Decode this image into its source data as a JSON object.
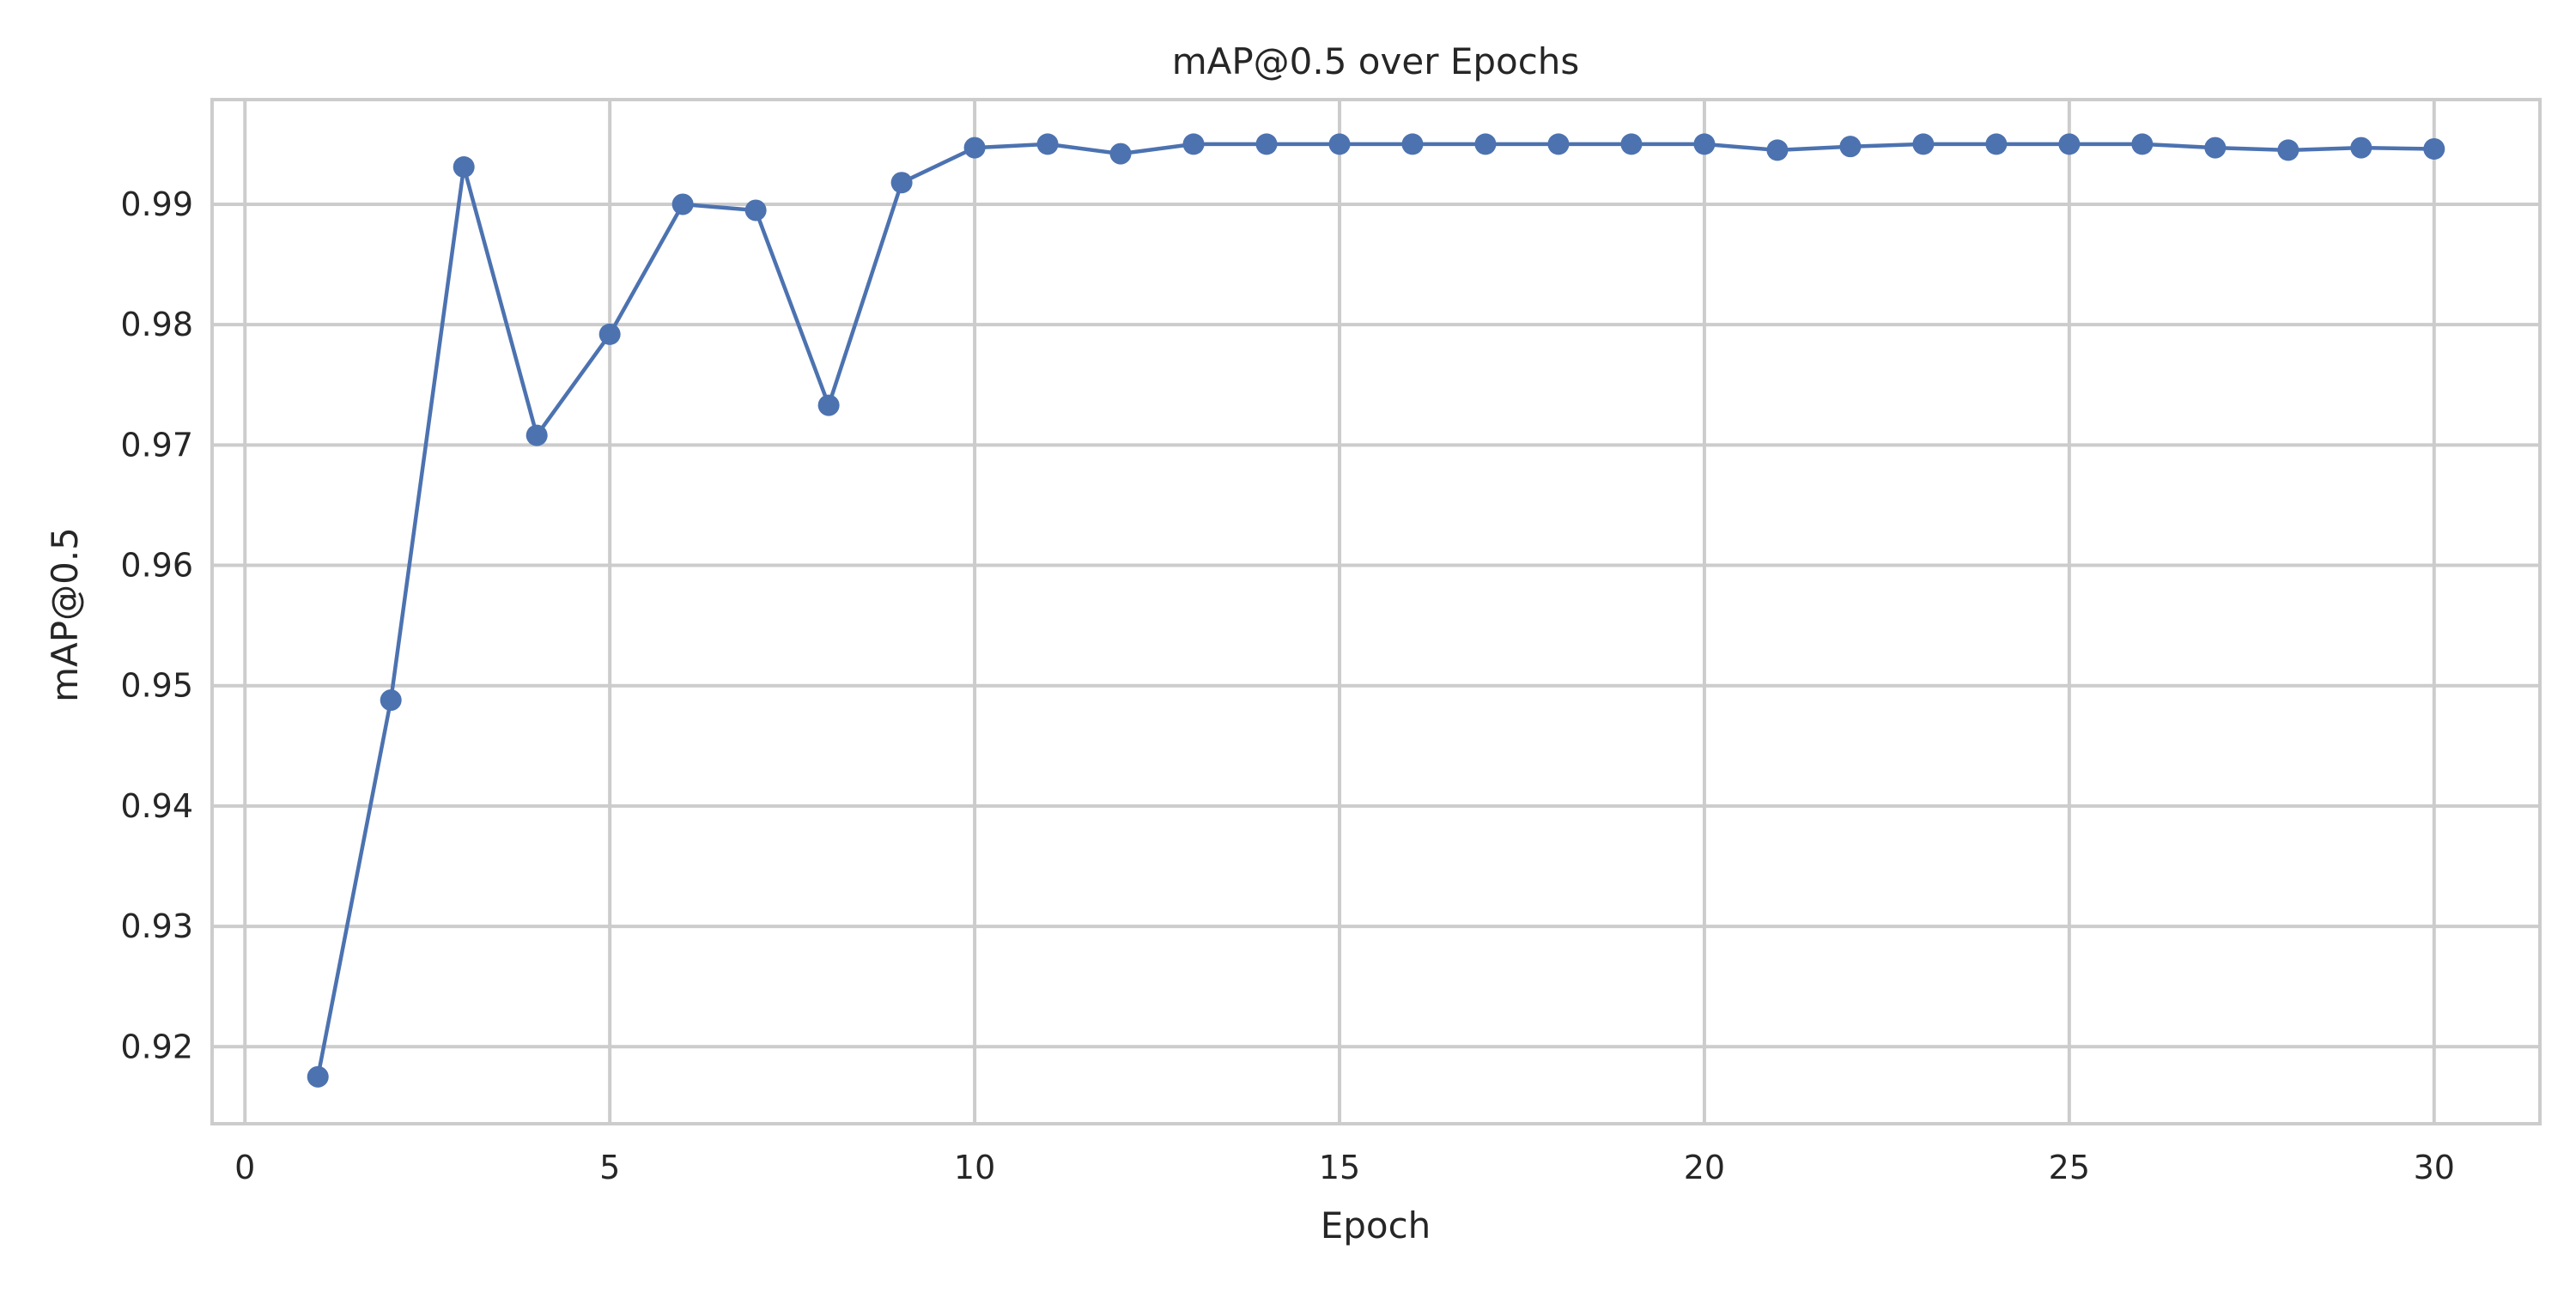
{
  "chart_data": {
    "type": "line",
    "title": "mAP@0.5 over Epochs",
    "xlabel": "Epoch",
    "ylabel": "mAP@0.5",
    "xlim": [
      -0.45,
      31.45
    ],
    "ylim": [
      0.9136,
      0.9987
    ],
    "x_ticks": [
      0,
      5,
      10,
      15,
      20,
      25,
      30
    ],
    "y_ticks": [
      0.92,
      0.93,
      0.94,
      0.95,
      0.96,
      0.97,
      0.98,
      0.99
    ],
    "y_tick_labels": [
      "0.92",
      "0.93",
      "0.94",
      "0.95",
      "0.96",
      "0.97",
      "0.98",
      "0.99"
    ],
    "grid": true,
    "series": [
      {
        "color": "#4c72b0",
        "marker": "circle",
        "x": [
          1,
          2,
          3,
          4,
          5,
          6,
          7,
          8,
          9,
          10,
          11,
          12,
          13,
          14,
          15,
          16,
          17,
          18,
          19,
          20,
          21,
          22,
          23,
          24,
          25,
          26,
          27,
          28,
          29,
          30
        ],
        "y": [
          0.9175,
          0.9488,
          0.9931,
          0.9708,
          0.9792,
          0.99,
          0.9895,
          0.9733,
          0.9918,
          0.9947,
          0.995,
          0.9942,
          0.995,
          0.995,
          0.995,
          0.995,
          0.995,
          0.995,
          0.995,
          0.995,
          0.9945,
          0.9948,
          0.995,
          0.995,
          0.995,
          0.995,
          0.9947,
          0.9945,
          0.9947,
          0.9946
        ]
      }
    ]
  }
}
